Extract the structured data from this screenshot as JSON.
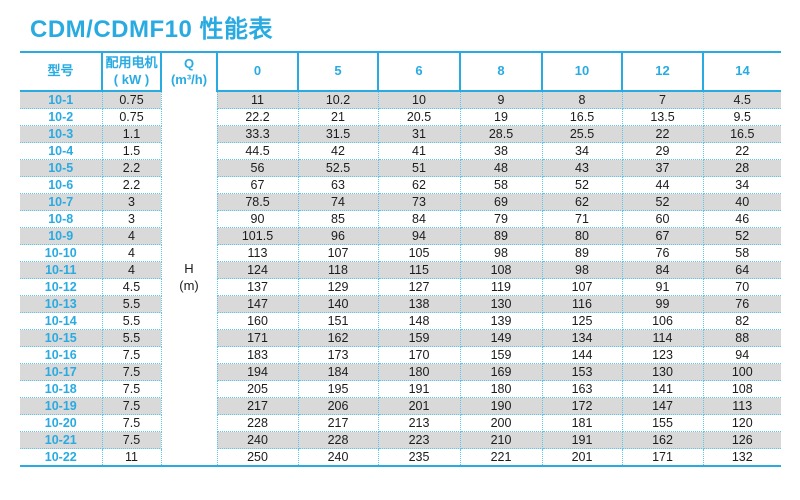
{
  "page_title": "CDM/CDMF10 性能表",
  "colors": {
    "accent": "#29abe2",
    "stripe": "#d9d9d9",
    "dotted_border": "#5ec5ec"
  },
  "table": {
    "headers": {
      "model": "型号",
      "motor_line1": "配用电机",
      "motor_line2": "( kW )",
      "q_line1": "Q",
      "q_line2": "(m³/h)",
      "flow_columns": [
        "0",
        "5",
        "6",
        "8",
        "10",
        "12",
        "14"
      ]
    },
    "merged_cell": {
      "line1": "H",
      "line2": "(m)"
    },
    "rows": [
      {
        "model": "10-1",
        "kw": "0.75",
        "values": [
          "11",
          "10.2",
          "10",
          "9",
          "8",
          "7",
          "4.5"
        ]
      },
      {
        "model": "10-2",
        "kw": "0.75",
        "values": [
          "22.2",
          "21",
          "20.5",
          "19",
          "16.5",
          "13.5",
          "9.5"
        ]
      },
      {
        "model": "10-3",
        "kw": "1.1",
        "values": [
          "33.3",
          "31.5",
          "31",
          "28.5",
          "25.5",
          "22",
          "16.5"
        ]
      },
      {
        "model": "10-4",
        "kw": "1.5",
        "values": [
          "44.5",
          "42",
          "41",
          "38",
          "34",
          "29",
          "22"
        ]
      },
      {
        "model": "10-5",
        "kw": "2.2",
        "values": [
          "56",
          "52.5",
          "51",
          "48",
          "43",
          "37",
          "28"
        ]
      },
      {
        "model": "10-6",
        "kw": "2.2",
        "values": [
          "67",
          "63",
          "62",
          "58",
          "52",
          "44",
          "34"
        ]
      },
      {
        "model": "10-7",
        "kw": "3",
        "values": [
          "78.5",
          "74",
          "73",
          "69",
          "62",
          "52",
          "40"
        ]
      },
      {
        "model": "10-8",
        "kw": "3",
        "values": [
          "90",
          "85",
          "84",
          "79",
          "71",
          "60",
          "46"
        ]
      },
      {
        "model": "10-9",
        "kw": "4",
        "values": [
          "101.5",
          "96",
          "94",
          "89",
          "80",
          "67",
          "52"
        ]
      },
      {
        "model": "10-10",
        "kw": "4",
        "values": [
          "113",
          "107",
          "105",
          "98",
          "89",
          "76",
          "58"
        ]
      },
      {
        "model": "10-11",
        "kw": "4",
        "values": [
          "124",
          "118",
          "115",
          "108",
          "98",
          "84",
          "64"
        ]
      },
      {
        "model": "10-12",
        "kw": "4.5",
        "values": [
          "137",
          "129",
          "127",
          "119",
          "107",
          "91",
          "70"
        ]
      },
      {
        "model": "10-13",
        "kw": "5.5",
        "values": [
          "147",
          "140",
          "138",
          "130",
          "116",
          "99",
          "76"
        ]
      },
      {
        "model": "10-14",
        "kw": "5.5",
        "values": [
          "160",
          "151",
          "148",
          "139",
          "125",
          "106",
          "82"
        ]
      },
      {
        "model": "10-15",
        "kw": "5.5",
        "values": [
          "171",
          "162",
          "159",
          "149",
          "134",
          "114",
          "88"
        ]
      },
      {
        "model": "10-16",
        "kw": "7.5",
        "values": [
          "183",
          "173",
          "170",
          "159",
          "144",
          "123",
          "94"
        ]
      },
      {
        "model": "10-17",
        "kw": "7.5",
        "values": [
          "194",
          "184",
          "180",
          "169",
          "153",
          "130",
          "100"
        ]
      },
      {
        "model": "10-18",
        "kw": "7.5",
        "values": [
          "205",
          "195",
          "191",
          "180",
          "163",
          "141",
          "108"
        ]
      },
      {
        "model": "10-19",
        "kw": "7.5",
        "values": [
          "217",
          "206",
          "201",
          "190",
          "172",
          "147",
          "113"
        ]
      },
      {
        "model": "10-20",
        "kw": "7.5",
        "values": [
          "228",
          "217",
          "213",
          "200",
          "181",
          "155",
          "120"
        ]
      },
      {
        "model": "10-21",
        "kw": "7.5",
        "values": [
          "240",
          "228",
          "223",
          "210",
          "191",
          "162",
          "126"
        ]
      },
      {
        "model": "10-22",
        "kw": "11",
        "values": [
          "250",
          "240",
          "235",
          "221",
          "201",
          "171",
          "132"
        ]
      }
    ]
  }
}
